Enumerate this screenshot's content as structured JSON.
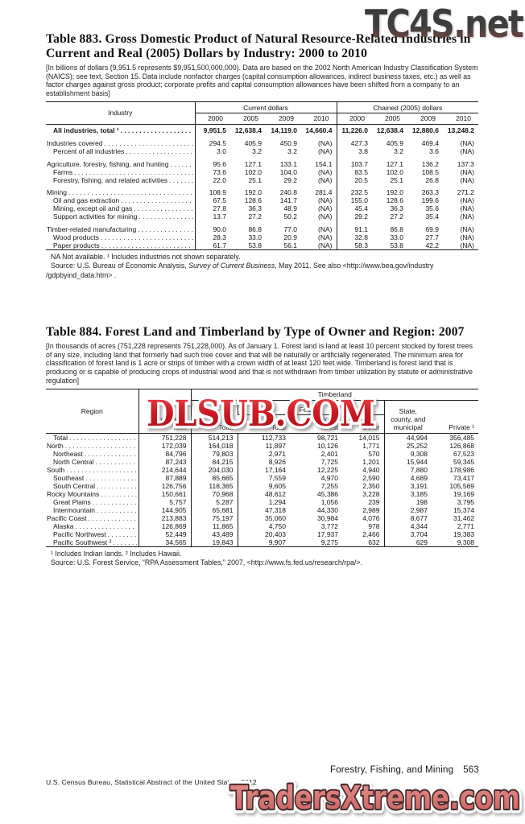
{
  "watermarks": {
    "top": "TC4S.net",
    "middle": "DLSUB.COM",
    "bottom": "TradersXtreme.com"
  },
  "table883": {
    "title": "Table 883. Gross Domestic Product of Natural Resource-Related Industries in Current and Real (2005) Dollars by Industry: 2000 to 2010",
    "note": "[In billions of dollars (9,951.5 represents $9,951,500,000,000). Data are based on the 2002 North American Industry Classification System (NAICS); see text, Section 15. Data include nonfactor charges (capital consumption allowances, indirect business taxes, etc.) as well as factor charges against gross product; corporate profits and capital consumption allowances have been shifted from a company to an establishment basis]",
    "header": {
      "industry": "Industry",
      "group1": "Current dollars",
      "group2": "Chained (2005) dollars",
      "years": [
        "2000",
        "2005",
        "2009",
        "2010"
      ]
    },
    "rows": [
      {
        "label": "All industries, total ¹",
        "indent": 1,
        "bold": true,
        "values": [
          "9,951.5",
          "12,638.4",
          "14,119.0",
          "14,660.4",
          "11,226.0",
          "12,638.4",
          "12,880.6",
          "13,248.2"
        ]
      },
      {
        "spacer": true
      },
      {
        "label": "Industries covered",
        "indent": 0,
        "values": [
          "294.5",
          "405.9",
          "450.9",
          "(NA)",
          "427.3",
          "405.9",
          "469.4",
          "(NA)"
        ]
      },
      {
        "label": "Percent of all industries",
        "indent": 1,
        "values": [
          "3.0",
          "3.2",
          "3.2",
          "(NA)",
          "3.8",
          "3.2",
          "3.6",
          "(NA)"
        ]
      },
      {
        "spacer": true
      },
      {
        "label": "Agriculture, forestry, fishing, and hunting",
        "indent": 0,
        "values": [
          "95.6",
          "127.1",
          "133.1",
          "154.1",
          "103.7",
          "127.1",
          "136.2",
          "137.3"
        ]
      },
      {
        "label": "Farms",
        "indent": 1,
        "values": [
          "73.6",
          "102.0",
          "104.0",
          "(NA)",
          "83.5",
          "102.0",
          "108.5",
          "(NA)"
        ]
      },
      {
        "label": "Forestry, fishing, and related activities",
        "indent": 1,
        "values": [
          "22.0",
          "25.1",
          "29.2",
          "(NA)",
          "20.5",
          "25.1",
          "26.8",
          "(NA)"
        ]
      },
      {
        "spacer": true
      },
      {
        "label": "Mining",
        "indent": 0,
        "values": [
          "108.9",
          "192.0",
          "240.8",
          "281.4",
          "232.5",
          "192.0",
          "263.3",
          "271.2"
        ]
      },
      {
        "label": "Oil and gas extraction",
        "indent": 1,
        "values": [
          "67.5",
          "128.6",
          "141.7",
          "(NA)",
          "155.0",
          "128.6",
          "199.6",
          "(NA)"
        ]
      },
      {
        "label": "Mining, except oil and gas",
        "indent": 1,
        "values": [
          "27.8",
          "36.3",
          "48.9",
          "(NA)",
          "45.4",
          "36.3",
          "35.6",
          "(NA)"
        ]
      },
      {
        "label": "Support activities for mining",
        "indent": 1,
        "values": [
          "13.7",
          "27.2",
          "50.2",
          "(NA)",
          "29.2",
          "27.2",
          "35.4",
          "(NA)"
        ]
      },
      {
        "spacer": true
      },
      {
        "label": "Timber-related manufacturing",
        "indent": 0,
        "values": [
          "90.0",
          "86.8",
          "77.0",
          "(NA)",
          "91.1",
          "86.8",
          "69.9",
          "(NA)"
        ]
      },
      {
        "label": "Wood products",
        "indent": 1,
        "values": [
          "28.3",
          "33.0",
          "20.9",
          "(NA)",
          "32.8",
          "33.0",
          "27.7",
          "(NA)"
        ]
      },
      {
        "label": "Paper products",
        "indent": 1,
        "values": [
          "61.7",
          "53.8",
          "56.1",
          "(NA)",
          "58.3",
          "53.8",
          "42.2",
          "(NA)"
        ]
      }
    ],
    "footnote": "NA Not available. ¹ Includes industries not shown separately.",
    "source_prefix": "Source: U.S. Bureau of Economic Analysis, ",
    "source_italic": "Survey of Current Business",
    "source_suffix": ", May 2011. See also <http://www.bea.gov/industry",
    "source_line2": "/gdpbyind_data.htm> ."
  },
  "table884": {
    "title": "Table 884. Forest Land and Timberland by Type of Owner and Region: 2007",
    "note": "[In thousands of acres (751,228 represents 751,228,000). As of January 1. Forest land is land at least 10 percent stocked by forest trees of any size, including land that formerly had such tree cover and that will be naturally or artificially regenerated. The minimum area for classification of forest land is 1 acre or strips of timber with a crown width of at least 120 feet wide. Timberland is forest land that is producing or is capable of producing crops of industrial wood and that is not withdrawn from timber utilization by statute or administrative regulation]",
    "header": {
      "region": "Region",
      "forest_land_line1": "Forest land,",
      "forest_land_line2": "total",
      "timberland": "Timberland",
      "total": "Total",
      "federal": "Federal",
      "federal_total": "Total",
      "national_forest_line1": "National",
      "national_forest_line2": "forest",
      "other": "Other",
      "state_line1": "State,",
      "state_line2": "county, and",
      "state_line3": "municipal",
      "private": "Private ¹"
    },
    "rows": [
      {
        "label": "Total",
        "indent": 1,
        "values": [
          "751,228",
          "514,213",
          "112,733",
          "98,721",
          "14,015",
          "44,994",
          "356,485"
        ]
      },
      {
        "label": "North",
        "indent": 0,
        "values": [
          "172,039",
          "164,018",
          "11,897",
          "10,126",
          "1,771",
          "25,252",
          "126,868"
        ]
      },
      {
        "label": "Northeast",
        "indent": 1,
        "values": [
          "84,796",
          "79,803",
          "2,971",
          "2,401",
          "570",
          "9,308",
          "67,523"
        ]
      },
      {
        "label": "North Central",
        "indent": 1,
        "values": [
          "87,243",
          "84,215",
          "8,926",
          "7,725",
          "1,201",
          "15,944",
          "59,345"
        ]
      },
      {
        "label": "South",
        "indent": 0,
        "values": [
          "214,644",
          "204,030",
          "17,164",
          "12,225",
          "4,940",
          "7,880",
          "178,986"
        ]
      },
      {
        "label": "Southeast",
        "indent": 1,
        "values": [
          "87,889",
          "85,665",
          "7,559",
          "4,970",
          "2,590",
          "4,689",
          "73,417"
        ]
      },
      {
        "label": "South Central",
        "indent": 1,
        "values": [
          "126,756",
          "118,365",
          "9,605",
          "7,255",
          "2,350",
          "3,191",
          "105,569"
        ]
      },
      {
        "label": "Rocky Mountains",
        "indent": 0,
        "values": [
          "150,661",
          "70,968",
          "48,612",
          "45,386",
          "3,228",
          "3,185",
          "19,169"
        ]
      },
      {
        "label": "Great Plains",
        "indent": 1,
        "values": [
          "5,757",
          "5,287",
          "1,294",
          "1,056",
          "239",
          "198",
          "3,795"
        ]
      },
      {
        "label": "Intermountain",
        "indent": 1,
        "values": [
          "144,905",
          "65,681",
          "47,318",
          "44,330",
          "2,989",
          "2,987",
          "15,374"
        ]
      },
      {
        "label": "Pacific Coast",
        "indent": 0,
        "values": [
          "213,883",
          "75,197",
          "35,060",
          "30,984",
          "4,076",
          "8,677",
          "31,462"
        ]
      },
      {
        "label": "Alaska",
        "indent": 1,
        "values": [
          "126,869",
          "11,865",
          "4,750",
          "3,772",
          "978",
          "4,344",
          "2,771"
        ]
      },
      {
        "label": "Pacific Northwest",
        "indent": 1,
        "values": [
          "52,449",
          "43,489",
          "20,403",
          "17,937",
          "2,466",
          "3,704",
          "19,383"
        ]
      },
      {
        "label": "Pacific Southwest ²",
        "indent": 1,
        "values": [
          "34,565",
          "19,843",
          "9,907",
          "9,275",
          "632",
          "629",
          "9,308"
        ]
      }
    ],
    "footnote": "¹ Includes Indian lands. ² Includes Hawaii.",
    "source": "Source: U.S. Forest Service, “RPA Assessment Tables,” 2007, <http://www.fs.fed.us/research/rpa/>."
  },
  "footer": {
    "right": "Forestry, Fishing, and Mining",
    "page": "563",
    "left": "U.S. Census Bureau, Statistical Abstract of the United States: 2012"
  },
  "colors": {
    "watermark_top_dark": "#3f3f3f",
    "watermark_top_red": "#96544b",
    "watermark_mid_red": "#cc1a22",
    "watermark_bottom_fill": "#d8736e",
    "rule": "#1a1a1a"
  }
}
